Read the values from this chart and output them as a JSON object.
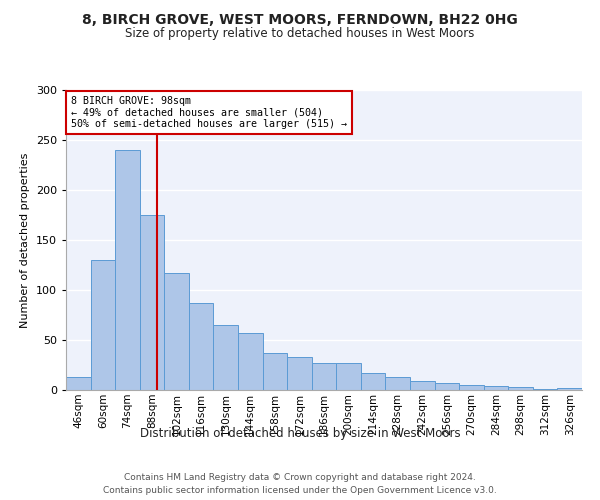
{
  "title": "8, BIRCH GROVE, WEST MOORS, FERNDOWN, BH22 0HG",
  "subtitle": "Size of property relative to detached houses in West Moors",
  "xlabel": "Distribution of detached houses by size in West Moors",
  "ylabel": "Number of detached properties",
  "categories": [
    "46sqm",
    "60sqm",
    "74sqm",
    "88sqm",
    "102sqm",
    "116sqm",
    "130sqm",
    "144sqm",
    "158sqm",
    "172sqm",
    "186sqm",
    "200sqm",
    "214sqm",
    "228sqm",
    "242sqm",
    "256sqm",
    "270sqm",
    "284sqm",
    "298sqm",
    "312sqm",
    "326sqm"
  ],
  "values": [
    13,
    130,
    240,
    175,
    117,
    87,
    65,
    57,
    37,
    33,
    27,
    27,
    17,
    13,
    9,
    7,
    5,
    4,
    3,
    1,
    2
  ],
  "bar_color": "#aec6e8",
  "bar_edge_color": "#5b9bd5",
  "annotation_text": "8 BIRCH GROVE: 98sqm\n← 49% of detached houses are smaller (504)\n50% of semi-detached houses are larger (515) →",
  "annotation_box_color": "#ffffff",
  "annotation_box_edge": "#cc0000",
  "line_color": "#cc0000",
  "ylim": [
    0,
    300
  ],
  "yticks": [
    0,
    50,
    100,
    150,
    200,
    250,
    300
  ],
  "background_color": "#eef2fb",
  "footer_line1": "Contains HM Land Registry data © Crown copyright and database right 2024.",
  "footer_line2": "Contains public sector information licensed under the Open Government Licence v3.0."
}
